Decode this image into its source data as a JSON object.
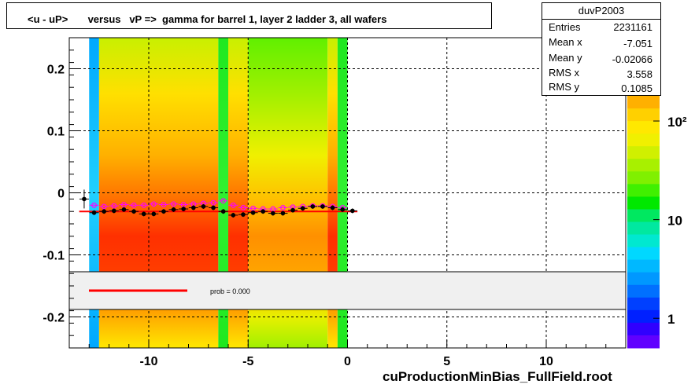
{
  "title": "<u - uP>       versus   vP =>  gamma for barrel 1, layer 2 ladder 3, all wafers",
  "stats": {
    "name": "duvP2003",
    "rows": [
      {
        "label": "Entries",
        "value": "2231161"
      },
      {
        "label": "Mean x",
        "value": "-7.051"
      },
      {
        "label": "Mean y",
        "value": "-0.02066"
      },
      {
        "label": "RMS x",
        "value": "3.558"
      },
      {
        "label": "RMS y",
        "value": "0.1085"
      }
    ]
  },
  "legend": {
    "fit_label": "prob = 0.000"
  },
  "footer": "cuProductionMinBias_FullField.root",
  "colors": {
    "fit_line": "#ff0000",
    "profile_open": "#ff00ff",
    "profile_filled": "#000000",
    "legend_bg": "#f0f0f0"
  },
  "chart_data": {
    "type": "heatmap",
    "xlim": [
      -14,
      14
    ],
    "ylim": [
      -0.25,
      0.25
    ],
    "xticks": [
      -10,
      -5,
      0,
      5,
      10
    ],
    "xtick_labels": [
      "-10",
      "-5",
      "0",
      "5",
      "10"
    ],
    "yticks": [
      -0.2,
      -0.1,
      0,
      0.1,
      0.2
    ],
    "ytick_labels": [
      "-0.2",
      "-0.1",
      "0",
      "0.1",
      "0.2"
    ],
    "grid": true,
    "colorbar": {
      "ticks": [
        1,
        10,
        100
      ],
      "labels": [
        "1",
        "10",
        "10²"
      ],
      "range": [
        0.5,
        180
      ]
    },
    "columns": [
      {
        "x0": -13.0,
        "x1": -12.5,
        "tone": "cyan"
      },
      {
        "x0": -12.5,
        "x1": -6.5,
        "tone": "hot"
      },
      {
        "x0": -6.5,
        "x1": -6.0,
        "tone": "green"
      },
      {
        "x0": -6.0,
        "x1": -5.0,
        "tone": "hot"
      },
      {
        "x0": -5.0,
        "x1": -1.0,
        "tone": "warm"
      },
      {
        "x0": -1.0,
        "x1": -0.5,
        "tone": "hot"
      },
      {
        "x0": -0.5,
        "x1": 0.0,
        "tone": "green"
      }
    ],
    "fit_line": {
      "x": [
        -13.5,
        0.5
      ],
      "y": [
        -0.03,
        -0.03
      ]
    },
    "profile_filled": {
      "x": [
        -13.25,
        -12.75,
        -12.25,
        -11.75,
        -11.25,
        -10.75,
        -10.25,
        -9.75,
        -9.25,
        -8.75,
        -8.25,
        -7.75,
        -7.25,
        -6.75,
        -6.25,
        -5.75,
        -5.25,
        -4.75,
        -4.25,
        -3.75,
        -3.25,
        -2.75,
        -2.25,
        -1.75,
        -1.25,
        -0.75,
        -0.25,
        0.25
      ],
      "y": [
        -0.01,
        -0.032,
        -0.03,
        -0.029,
        -0.027,
        -0.03,
        -0.034,
        -0.034,
        -0.03,
        -0.027,
        -0.026,
        -0.024,
        -0.022,
        -0.024,
        -0.03,
        -0.036,
        -0.035,
        -0.032,
        -0.03,
        -0.033,
        -0.033,
        -0.028,
        -0.025,
        -0.022,
        -0.022,
        -0.024,
        -0.027,
        -0.029
      ]
    },
    "profile_open": {
      "x": [
        -12.75,
        -12.25,
        -11.75,
        -11.25,
        -10.75,
        -10.25,
        -9.75,
        -9.25,
        -8.75,
        -8.25,
        -7.75,
        -7.25,
        -6.75,
        -6.25,
        -5.75,
        -5.25,
        -4.75,
        -4.25,
        -3.75,
        -3.25,
        -2.75,
        -2.25,
        -1.75,
        -1.25,
        -0.75,
        -0.25
      ],
      "y": [
        -0.02,
        -0.022,
        -0.021,
        -0.019,
        -0.02,
        -0.02,
        -0.018,
        -0.019,
        -0.018,
        -0.019,
        -0.018,
        -0.017,
        -0.016,
        -0.013,
        -0.02,
        -0.024,
        -0.025,
        -0.026,
        -0.026,
        -0.024,
        -0.023,
        -0.022,
        -0.021,
        -0.021,
        -0.022,
        -0.024
      ]
    }
  }
}
